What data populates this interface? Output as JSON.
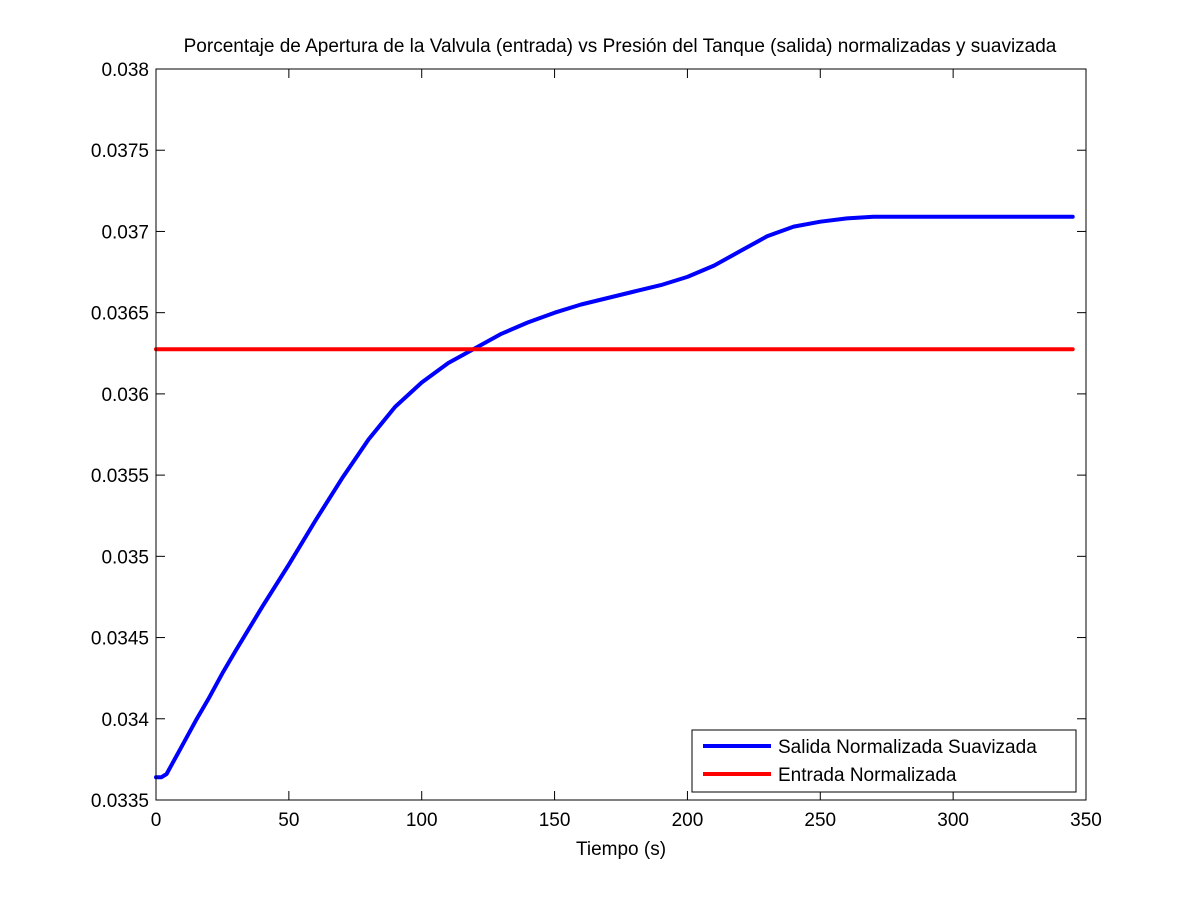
{
  "chart_data": {
    "type": "line",
    "title": "Porcentaje de Apertura de la Valvula (entrada) vs Presión del Tanque (salida) normalizadas y suavizada",
    "xlabel": "Tiempo (s)",
    "ylabel": "",
    "xlim": [
      0,
      350
    ],
    "ylim": [
      0.0335,
      0.038
    ],
    "xticks": [
      0,
      50,
      100,
      150,
      200,
      250,
      300,
      350
    ],
    "xtick_labels": [
      "0",
      "50",
      "100",
      "150",
      "200",
      "250",
      "300",
      "350"
    ],
    "yticks": [
      0.0335,
      0.034,
      0.0345,
      0.035,
      0.0355,
      0.036,
      0.0365,
      0.037,
      0.0375,
      0.038
    ],
    "ytick_labels": [
      "0.0335",
      "0.034",
      "0.0345",
      "0.035",
      "0.0355",
      "0.036",
      "0.0365",
      "0.037",
      "0.0375",
      "0.038"
    ],
    "grid": false,
    "legend_position": "bottom-right",
    "series": [
      {
        "name": "Salida Normalizada Suavizada",
        "color": "#0000ff",
        "x": [
          0,
          2,
          4,
          6,
          8,
          10,
          15,
          20,
          25,
          30,
          40,
          50,
          60,
          70,
          80,
          90,
          100,
          110,
          120,
          130,
          140,
          150,
          160,
          170,
          180,
          190,
          200,
          210,
          220,
          230,
          240,
          250,
          260,
          270,
          280,
          300,
          320,
          345
        ],
        "y": [
          0.03364,
          0.03364,
          0.03366,
          0.03372,
          0.03378,
          0.03384,
          0.03399,
          0.03413,
          0.03428,
          0.03442,
          0.03469,
          0.03495,
          0.03522,
          0.03548,
          0.03572,
          0.03592,
          0.03607,
          0.03619,
          0.03628,
          0.03637,
          0.03644,
          0.0365,
          0.03655,
          0.03659,
          0.03663,
          0.03667,
          0.03672,
          0.03679,
          0.03688,
          0.03697,
          0.03703,
          0.03706,
          0.03708,
          0.03709,
          0.03709,
          0.03709,
          0.03709,
          0.03709
        ]
      },
      {
        "name": "Entrada Normalizada",
        "color": "#ff0000",
        "x": [
          0,
          345
        ],
        "y": [
          0.036275,
          0.036275
        ]
      }
    ]
  }
}
